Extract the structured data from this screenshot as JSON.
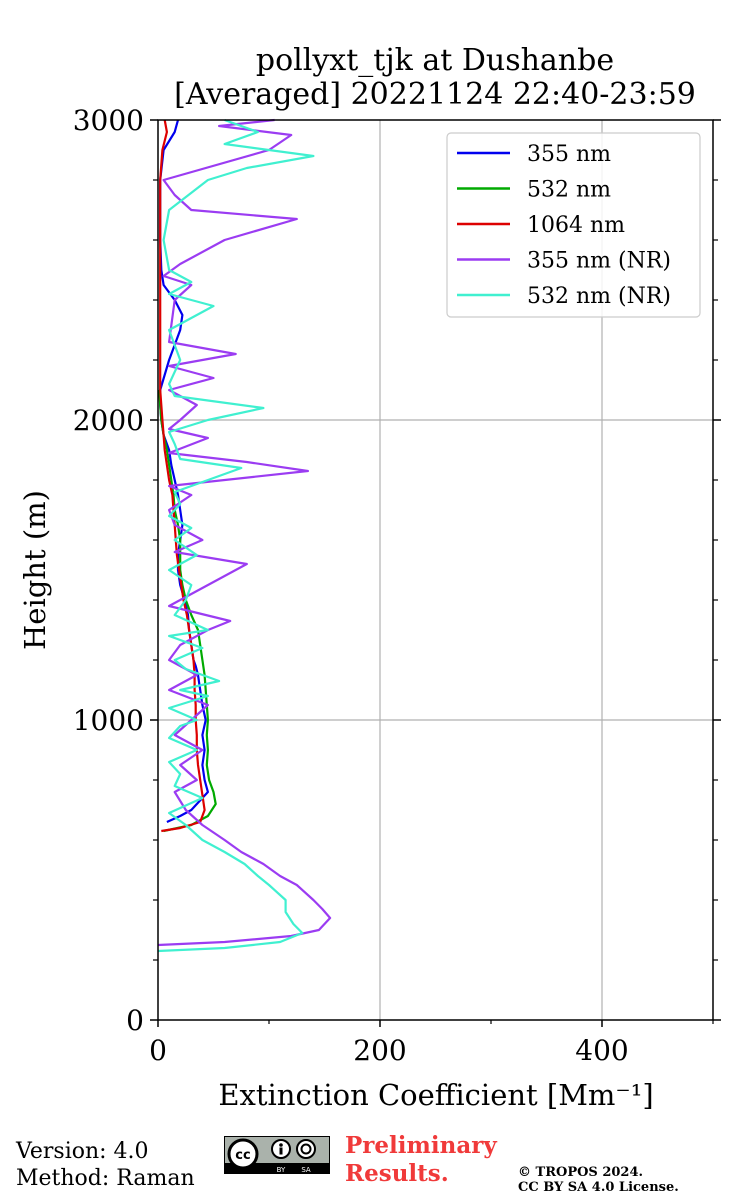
{
  "chart_data": {
    "type": "line",
    "title_line1": "pollyxt_tjk at Dushanbe",
    "title_line2": "[Averaged] 20221124 22:40-23:59",
    "xlabel": "Extinction Coefficient [Mm⁻¹]",
    "ylabel": "Height (m)",
    "xlim": [
      0,
      500
    ],
    "ylim": [
      0,
      3000
    ],
    "xticks": [
      0,
      200,
      400
    ],
    "yticks": [
      0,
      1000,
      2000,
      3000
    ],
    "grid": true,
    "legend_position": "top-right",
    "series": [
      {
        "name": "355 nm",
        "color": "#0000ee",
        "points": [
          [
            8,
            660
          ],
          [
            20,
            680
          ],
          [
            30,
            700
          ],
          [
            45,
            760
          ],
          [
            42,
            800
          ],
          [
            40,
            850
          ],
          [
            42,
            900
          ],
          [
            40,
            950
          ],
          [
            43,
            1000
          ],
          [
            40,
            1050
          ],
          [
            38,
            1100
          ],
          [
            36,
            1150
          ],
          [
            34,
            1180
          ],
          [
            32,
            1200
          ],
          [
            30,
            1250
          ],
          [
            28,
            1300
          ],
          [
            27,
            1350
          ],
          [
            24,
            1400
          ],
          [
            20,
            1450
          ],
          [
            18,
            1500
          ],
          [
            18,
            1550
          ],
          [
            20,
            1600
          ],
          [
            22,
            1650
          ],
          [
            20,
            1700
          ],
          [
            18,
            1750
          ],
          [
            15,
            1800
          ],
          [
            12,
            1850
          ],
          [
            10,
            1900
          ],
          [
            5,
            1950
          ],
          [
            3,
            2000
          ],
          [
            2,
            2050
          ],
          [
            2,
            2100
          ],
          [
            10,
            2200
          ],
          [
            20,
            2300
          ],
          [
            22,
            2350
          ],
          [
            15,
            2400
          ],
          [
            5,
            2450
          ],
          [
            3,
            2500
          ],
          [
            2,
            2600
          ],
          [
            2,
            2700
          ],
          [
            2,
            2800
          ],
          [
            5,
            2900
          ],
          [
            15,
            2960
          ],
          [
            18,
            3000
          ]
        ]
      },
      {
        "name": "532 nm",
        "color": "#00aa00",
        "points": [
          [
            5,
            630
          ],
          [
            30,
            650
          ],
          [
            45,
            680
          ],
          [
            52,
            720
          ],
          [
            50,
            760
          ],
          [
            46,
            800
          ],
          [
            44,
            850
          ],
          [
            45,
            900
          ],
          [
            44,
            950
          ],
          [
            45,
            1000
          ],
          [
            44,
            1050
          ],
          [
            43,
            1100
          ],
          [
            42,
            1150
          ],
          [
            40,
            1200
          ],
          [
            38,
            1250
          ],
          [
            36,
            1300
          ],
          [
            30,
            1350
          ],
          [
            25,
            1400
          ],
          [
            22,
            1450
          ],
          [
            20,
            1500
          ],
          [
            20,
            1550
          ],
          [
            20,
            1600
          ],
          [
            18,
            1650
          ],
          [
            15,
            1700
          ],
          [
            14,
            1750
          ],
          [
            12,
            1800
          ],
          [
            10,
            1850
          ],
          [
            8,
            1900
          ],
          [
            5,
            1950
          ],
          [
            3,
            2000
          ],
          [
            2,
            2050
          ],
          [
            1,
            2100
          ]
        ]
      },
      {
        "name": "1064 nm",
        "color": "#dd0000",
        "points": [
          [
            3,
            630
          ],
          [
            20,
            640
          ],
          [
            38,
            660
          ],
          [
            42,
            700
          ],
          [
            40,
            750
          ],
          [
            38,
            800
          ],
          [
            36,
            850
          ],
          [
            35,
            900
          ],
          [
            35,
            950
          ],
          [
            34,
            1000
          ],
          [
            34,
            1050
          ],
          [
            33,
            1100
          ],
          [
            33,
            1150
          ],
          [
            32,
            1200
          ],
          [
            30,
            1250
          ],
          [
            28,
            1300
          ],
          [
            26,
            1350
          ],
          [
            23,
            1400
          ],
          [
            21,
            1450
          ],
          [
            19,
            1500
          ],
          [
            17,
            1550
          ],
          [
            16,
            1600
          ],
          [
            15,
            1650
          ],
          [
            14,
            1700
          ],
          [
            13,
            1750
          ],
          [
            10,
            1800
          ],
          [
            8,
            1850
          ],
          [
            6,
            1900
          ],
          [
            5,
            1950
          ],
          [
            4,
            2000
          ],
          [
            3,
            2050
          ],
          [
            2,
            2100
          ],
          [
            2,
            2800
          ],
          [
            4,
            2900
          ],
          [
            8,
            2960
          ],
          [
            6,
            3000
          ]
        ]
      },
      {
        "name": "355 nm (NR)",
        "color": "#9b3cf2",
        "points": [
          [
            0,
            250
          ],
          [
            60,
            260
          ],
          [
            120,
            280
          ],
          [
            145,
            300
          ],
          [
            155,
            340
          ],
          [
            148,
            370
          ],
          [
            140,
            400
          ],
          [
            125,
            450
          ],
          [
            110,
            480
          ],
          [
            95,
            520
          ],
          [
            75,
            560
          ],
          [
            60,
            600
          ],
          [
            40,
            650
          ],
          [
            25,
            700
          ],
          [
            15,
            760
          ],
          [
            35,
            800
          ],
          [
            20,
            850
          ],
          [
            40,
            900
          ],
          [
            15,
            950
          ],
          [
            30,
            1000
          ],
          [
            45,
            1050
          ],
          [
            10,
            1100
          ],
          [
            35,
            1150
          ],
          [
            10,
            1200
          ],
          [
            20,
            1250
          ],
          [
            45,
            1300
          ],
          [
            65,
            1330
          ],
          [
            10,
            1380
          ],
          [
            30,
            1420
          ],
          [
            60,
            1480
          ],
          [
            80,
            1520
          ],
          [
            15,
            1560
          ],
          [
            40,
            1600
          ],
          [
            15,
            1650
          ],
          [
            10,
            1700
          ],
          [
            30,
            1750
          ],
          [
            10,
            1780
          ],
          [
            135,
            1830
          ],
          [
            80,
            1860
          ],
          [
            10,
            1890
          ],
          [
            45,
            1940
          ],
          [
            10,
            1970
          ],
          [
            20,
            2000
          ],
          [
            35,
            2050
          ],
          [
            10,
            2100
          ],
          [
            50,
            2140
          ],
          [
            10,
            2180
          ],
          [
            70,
            2220
          ],
          [
            10,
            2260
          ],
          [
            15,
            2400
          ],
          [
            30,
            2450
          ],
          [
            5,
            2480
          ],
          [
            20,
            2520
          ],
          [
            60,
            2600
          ],
          [
            125,
            2670
          ],
          [
            30,
            2700
          ],
          [
            15,
            2750
          ],
          [
            5,
            2800
          ],
          [
            100,
            2900
          ],
          [
            120,
            2950
          ],
          [
            55,
            2980
          ],
          [
            105,
            3000
          ]
        ]
      },
      {
        "name": "532 nm (NR)",
        "color": "#40f0d0",
        "points": [
          [
            0,
            230
          ],
          [
            60,
            240
          ],
          [
            110,
            260
          ],
          [
            130,
            290
          ],
          [
            122,
            320
          ],
          [
            115,
            360
          ],
          [
            115,
            400
          ],
          [
            100,
            450
          ],
          [
            90,
            480
          ],
          [
            78,
            520
          ],
          [
            60,
            560
          ],
          [
            40,
            600
          ],
          [
            25,
            650
          ],
          [
            10,
            690
          ],
          [
            40,
            740
          ],
          [
            15,
            780
          ],
          [
            20,
            820
          ],
          [
            10,
            860
          ],
          [
            35,
            900
          ],
          [
            10,
            940
          ],
          [
            20,
            980
          ],
          [
            35,
            1000
          ],
          [
            10,
            1040
          ],
          [
            45,
            1080
          ],
          [
            20,
            1100
          ],
          [
            55,
            1130
          ],
          [
            25,
            1170
          ],
          [
            15,
            1200
          ],
          [
            40,
            1240
          ],
          [
            10,
            1280
          ],
          [
            45,
            1300
          ],
          [
            15,
            1350
          ],
          [
            25,
            1400
          ],
          [
            30,
            1450
          ],
          [
            10,
            1500
          ],
          [
            35,
            1550
          ],
          [
            15,
            1600
          ],
          [
            30,
            1640
          ],
          [
            10,
            1680
          ],
          [
            20,
            1720
          ],
          [
            15,
            1760
          ],
          [
            75,
            1840
          ],
          [
            20,
            1870
          ],
          [
            15,
            1920
          ],
          [
            10,
            1960
          ],
          [
            45,
            2000
          ],
          [
            95,
            2040
          ],
          [
            15,
            2080
          ],
          [
            10,
            2120
          ],
          [
            20,
            2200
          ],
          [
            10,
            2300
          ],
          [
            50,
            2380
          ],
          [
            10,
            2420
          ],
          [
            30,
            2460
          ],
          [
            10,
            2500
          ],
          [
            5,
            2600
          ],
          [
            10,
            2700
          ],
          [
            45,
            2800
          ],
          [
            80,
            2840
          ],
          [
            140,
            2880
          ],
          [
            60,
            2920
          ],
          [
            90,
            2960
          ],
          [
            60,
            3000
          ]
        ]
      }
    ]
  },
  "footer": {
    "version": "Version: 4.0",
    "method": "Method: Raman",
    "preliminary_line1": "Preliminary",
    "preliminary_line2": "Results.",
    "copyright_line1": "© TROPOS 2024.",
    "copyright_line2": "CC BY SA 4.0 License.",
    "license_badge": "cc-by-sa-badge"
  }
}
